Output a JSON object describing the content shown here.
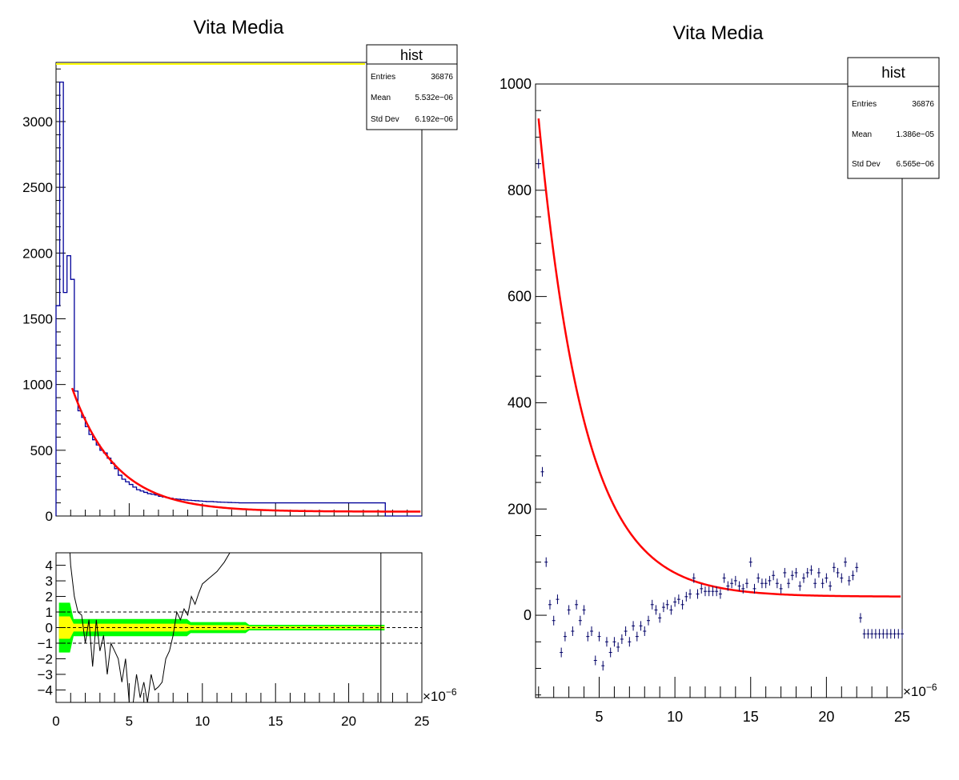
{
  "chart_data": [
    {
      "type": "histogram",
      "title": "Vita Media",
      "xlim": [
        0,
        25
      ],
      "ylim": [
        0,
        3450
      ],
      "x_exponent": "×10",
      "x_exponent_power": "−6",
      "y_ticks": [
        {
          "v": 0,
          "label": "0"
        },
        {
          "v": 500,
          "label": "500"
        },
        {
          "v": 1000,
          "label": "1000"
        },
        {
          "v": 1500,
          "label": "1500"
        },
        {
          "v": 2000,
          "label": "2000"
        },
        {
          "v": 2500,
          "label": "2500"
        },
        {
          "v": 3000,
          "label": "3000"
        }
      ],
      "stats": {
        "title": "hist",
        "rows": [
          {
            "label": "Entries",
            "value": "36876"
          },
          {
            "label": "Mean",
            "value": "5.532e−06"
          },
          {
            "label": "Std Dev",
            "value": "6.192e−06"
          }
        ]
      },
      "bin_width": 0.25,
      "hist_values": [
        1600,
        3300,
        1700,
        1980,
        1800,
        950,
        800,
        750,
        680,
        620,
        580,
        540,
        500,
        480,
        440,
        400,
        360,
        310,
        280,
        260,
        240,
        220,
        200,
        190,
        180,
        170,
        165,
        160,
        150,
        145,
        140,
        135,
        130,
        128,
        125,
        122,
        120,
        118,
        116,
        114,
        112,
        110,
        110,
        108,
        106,
        105,
        104,
        103,
        102,
        101,
        100,
        100,
        100,
        100,
        100,
        100,
        100,
        100,
        100,
        100,
        100,
        100,
        100,
        100,
        100,
        100,
        100,
        100,
        100,
        100,
        100,
        100,
        100,
        100,
        100,
        100,
        100,
        100,
        100,
        100,
        100,
        100,
        100,
        100,
        100,
        100,
        100,
        100,
        100,
        100
      ],
      "fit": {
        "x_start": 1.1,
        "x_end": 25,
        "amplitude": 940,
        "decay": 3.0,
        "baseline": 33,
        "color": "#ff0000"
      },
      "hist_color": "#000099"
    },
    {
      "type": "residual",
      "xlim": [
        0,
        25
      ],
      "ylim": [
        -4.8,
        4.8
      ],
      "x_ticks": [
        {
          "v": 0,
          "label": "0"
        },
        {
          "v": 5,
          "label": "5"
        },
        {
          "v": 10,
          "label": "10"
        },
        {
          "v": 15,
          "label": "15"
        },
        {
          "v": 20,
          "label": "20"
        },
        {
          "v": 25,
          "label": "25"
        }
      ],
      "y_ticks": [
        {
          "v": 4,
          "label": "4"
        },
        {
          "v": 3,
          "label": "3"
        },
        {
          "v": 2,
          "label": "2"
        },
        {
          "v": 1,
          "label": "1"
        },
        {
          "v": 0,
          "label": "0"
        },
        {
          "v": -1,
          "label": "−1"
        },
        {
          "v": -2,
          "label": "−2"
        },
        {
          "v": -3,
          "label": "−3"
        },
        {
          "v": -4,
          "label": "−4"
        }
      ],
      "x_exponent": "×10",
      "x_exponent_power": "−6",
      "dashed_levels": [
        1,
        0,
        -1
      ],
      "band_colors": {
        "outer": "#00ff00",
        "inner": "#ffff00"
      },
      "residual_x": [
        0.25,
        0.5,
        0.75,
        1.0,
        1.25,
        1.5,
        1.75,
        2.0,
        2.25,
        2.5,
        2.75,
        3.0,
        3.25,
        3.5,
        3.75,
        4.0,
        4.25,
        4.5,
        4.75,
        5.0,
        5.25,
        5.5,
        5.75,
        6.0,
        6.25,
        6.5,
        6.75,
        7.0,
        7.25,
        7.5,
        7.75,
        8.0,
        8.25,
        8.5,
        8.75,
        9.0,
        9.25,
        9.5,
        9.75,
        10.0,
        10.5,
        11.0,
        11.5,
        12.0,
        12.5,
        13.0,
        13.5,
        14.0,
        14.5,
        15.0
      ],
      "residual_y": [
        20,
        15,
        8,
        4,
        2,
        1,
        0.8,
        -1,
        0.5,
        -2.5,
        0.5,
        -1.5,
        -0.5,
        -3,
        -1,
        -1.5,
        -2,
        -3.5,
        -2,
        -4.8,
        -5,
        -3,
        -4.5,
        -3.5,
        -4.8,
        -3,
        -4,
        -3.8,
        -3.5,
        -2,
        -1.5,
        -0.5,
        1,
        0.5,
        1.2,
        0.8,
        2,
        1.5,
        2.2,
        2.8,
        3.2,
        3.6,
        4.2,
        5,
        5.2,
        4.9,
        5.3,
        5.6,
        5.8,
        6
      ],
      "spike_x": 22.2
    },
    {
      "type": "scatter",
      "title": "Vita Media",
      "xlim": [
        0.8,
        25
      ],
      "ylim": [
        -155,
        1000
      ],
      "x_ticks": [
        {
          "v": 5,
          "label": "5"
        },
        {
          "v": 10,
          "label": "10"
        },
        {
          "v": 15,
          "label": "15"
        },
        {
          "v": 20,
          "label": "20"
        },
        {
          "v": 25,
          "label": "25"
        }
      ],
      "y_ticks": [
        {
          "v": 0,
          "label": "0"
        },
        {
          "v": 200,
          "label": "200"
        },
        {
          "v": 400,
          "label": "400"
        },
        {
          "v": 600,
          "label": "600"
        },
        {
          "v": 800,
          "label": "800"
        },
        {
          "v": 1000,
          "label": "1000"
        }
      ],
      "x_exponent": "×10",
      "x_exponent_power": "−6",
      "stats": {
        "title": "hist",
        "rows": [
          {
            "label": "Entries",
            "value": "36876"
          },
          {
            "label": "Mean",
            "value": "1.386e−05"
          },
          {
            "label": "Std Dev",
            "value": "6.565e−06"
          }
        ]
      },
      "points_x": [
        1.0,
        1.25,
        1.5,
        1.75,
        2.0,
        2.25,
        2.5,
        2.75,
        3.0,
        3.25,
        3.5,
        3.75,
        4.0,
        4.25,
        4.5,
        4.75,
        5.0,
        5.25,
        5.5,
        5.75,
        6.0,
        6.25,
        6.5,
        6.75,
        7.0,
        7.25,
        7.5,
        7.75,
        8.0,
        8.25,
        8.5,
        8.75,
        9.0,
        9.25,
        9.5,
        9.75,
        10.0,
        10.25,
        10.5,
        10.75,
        11.0,
        11.25,
        11.5,
        11.75,
        12.0,
        12.25,
        12.5,
        12.75,
        13.0,
        13.25,
        13.5,
        13.75,
        14.0,
        14.25,
        14.5,
        14.75,
        15.0,
        15.25,
        15.5,
        15.75,
        16.0,
        16.25,
        16.5,
        16.75,
        17.0,
        17.25,
        17.5,
        17.75,
        18.0,
        18.25,
        18.5,
        18.75,
        19.0,
        19.25,
        19.5,
        19.75,
        20.0,
        20.25,
        20.5,
        20.75,
        21.0,
        21.25,
        21.5,
        21.75,
        22.0,
        22.25,
        22.5,
        22.75,
        23.0,
        23.25,
        23.5,
        23.75,
        24.0,
        24.25,
        24.5,
        24.75,
        25.0
      ],
      "points_y": [
        850,
        270,
        100,
        20,
        -10,
        30,
        -70,
        -40,
        10,
        -30,
        20,
        -10,
        10,
        -40,
        -30,
        -85,
        -40,
        -95,
        -50,
        -70,
        -50,
        -60,
        -45,
        -30,
        -50,
        -20,
        -40,
        -20,
        -30,
        -10,
        20,
        10,
        -5,
        15,
        20,
        10,
        25,
        30,
        20,
        35,
        40,
        70,
        40,
        50,
        45,
        45,
        45,
        45,
        40,
        70,
        55,
        60,
        65,
        55,
        50,
        60,
        100,
        50,
        70,
        60,
        60,
        65,
        75,
        60,
        50,
        80,
        60,
        75,
        80,
        55,
        70,
        80,
        85,
        60,
        80,
        60,
        70,
        55,
        90,
        80,
        70,
        100,
        65,
        75,
        90,
        -5,
        -35,
        -35,
        -35,
        -35,
        -35,
        -35,
        -35,
        -35,
        -35,
        -35,
        -35
      ],
      "points_color": "#000066",
      "fit": {
        "x_start": 1.0,
        "x_end": 25,
        "amplitude": 900,
        "decay": 3.0,
        "baseline": 35,
        "color": "#ff0000"
      }
    }
  ]
}
